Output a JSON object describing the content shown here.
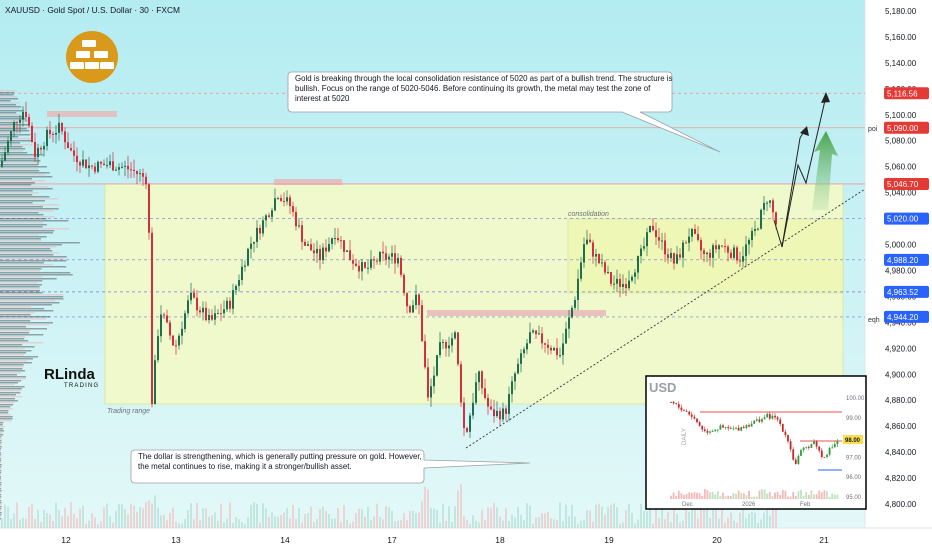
{
  "header": {
    "title": "XAUUSD · Gold Spot / U.S. Dollar · 30 · FXCM"
  },
  "colors": {
    "up": "#26a69a",
    "down": "#ef5350",
    "bull_candle": "#2e7d5b",
    "bear_candle": "#d32f3f",
    "zone_fill": "#f4f9c9",
    "sky": "#b6ecf2",
    "price_tag": "#e53935",
    "blue_tag": "#2962ff",
    "gold_badge": "#d99a1c"
  },
  "icons": {
    "badge": "gold-bars-icon",
    "logo": "rlinda-trading-logo"
  },
  "logo": {
    "line1": "RLinda",
    "line2": "TRADING"
  },
  "annotations": {
    "gold_note": "Gold is breaking through the local consolidation resistance of 5020 as part of a bullish trend. The structure is bullish. Focus on the range of 5020-5046. Before continuing its growth, the metal may test the zone of interest at 5020",
    "dollar_note": "The dollar is strengthening, which is generally putting pressure on gold. However, the metal continues to rise, making it a stronger/bullish asset.",
    "trading_range": "Trading range",
    "consolidation": "consolidation",
    "poi": "poi",
    "eqh": "eqh"
  },
  "inset": {
    "title": "USD",
    "side_label": "DAILY",
    "y_ticks": [
      "100.00",
      "99.00",
      "98.00",
      "97.00",
      "96.00",
      "95.00"
    ],
    "x_ticks": [
      "Dec",
      "2026",
      "Feb"
    ],
    "current_tag": "98.00"
  },
  "chart_data": {
    "type": "candlestick",
    "symbol": "XAUUSD",
    "timeframe": "30",
    "y_axis": {
      "ticks": [
        "5,180.00",
        "5,160.00",
        "5,140.00",
        "5,120.00",
        "5,100.00",
        "5,080.00",
        "5,060.00",
        "5,040.00",
        "5,020.00",
        "5,000.00",
        "4,980.00",
        "4,960.00",
        "4,940.00",
        "4,920.00",
        "4,900.00",
        "4,880.00",
        "4,860.00",
        "4,840.00",
        "4,820.00",
        "4,800.00"
      ],
      "range": [
        4790,
        5190
      ]
    },
    "x_axis": {
      "ticks": [
        "12",
        "13",
        "14",
        "17",
        "18",
        "19",
        "20",
        "21"
      ]
    },
    "levels": [
      {
        "label": "5,116.56",
        "value": 5116.56,
        "tag": "red"
      },
      {
        "label": "5,090.00",
        "value": 5090.0,
        "tag": "red"
      },
      {
        "label": "5,046.70",
        "value": 5046.7,
        "tag": "red"
      },
      {
        "label": "5,020.00",
        "value": 5020.0,
        "tag": "blue"
      },
      {
        "label": "4,988.20",
        "value": 4988.2,
        "tag": "blue"
      },
      {
        "label": "4,963.52",
        "value": 4963.52,
        "tag": "blue"
      },
      {
        "label": "4,944.20",
        "value": 4944.2,
        "tag": "blue"
      }
    ]
  }
}
